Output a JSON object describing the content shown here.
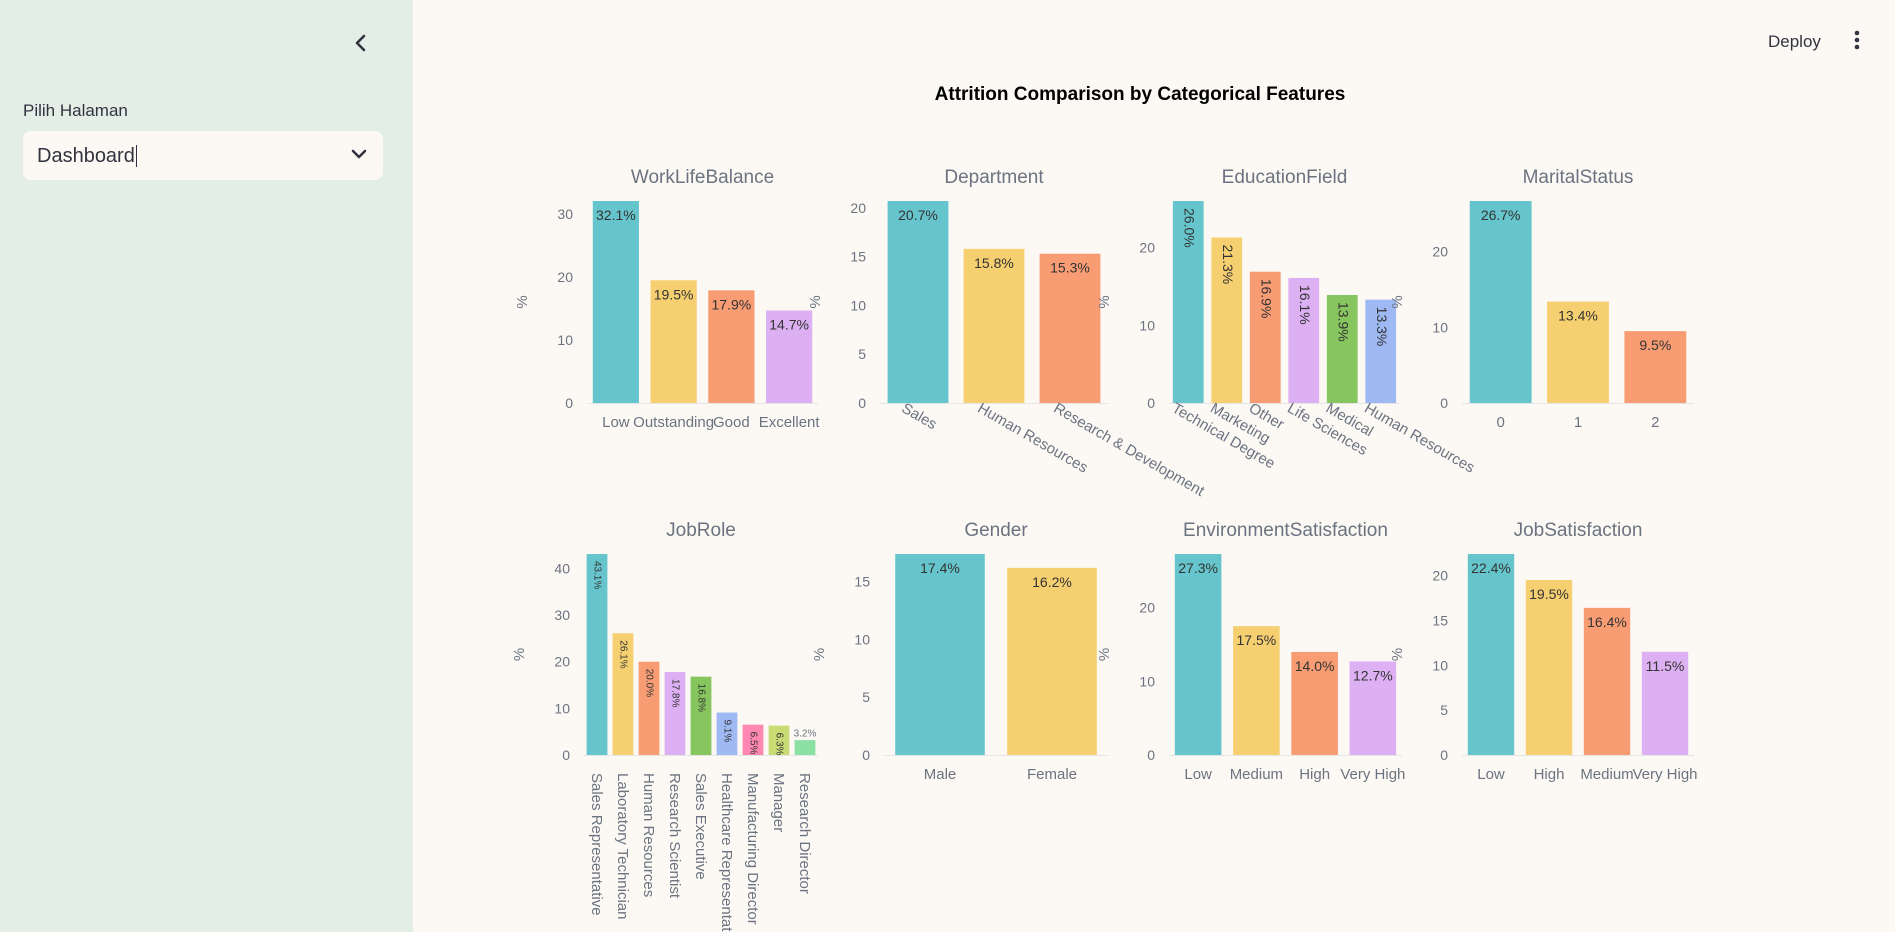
{
  "sidebar": {
    "nav_label": "Pilih Halaman",
    "select_value": "Dashboard",
    "collapse_icon": "chevron-left-icon",
    "dropdown_icon": "chevron-down-icon"
  },
  "header": {
    "deploy_label": "Deploy",
    "menu_icon": "vertical-dots-icon"
  },
  "main": {
    "title": "Attrition Comparison by Categorical Features"
  },
  "colors": [
    "#66c5cc",
    "#f6cf71",
    "#f89c74",
    "#dcb0f2",
    "#87c55f",
    "#9eb9f3",
    "#fe88b1",
    "#c9db74",
    "#8be0a4"
  ],
  "chart_data": [
    {
      "type": "bar",
      "title": "WorkLifeBalance",
      "ylabel": "%",
      "ylim": [
        0,
        32.1
      ],
      "yticks": [
        "0",
        "10",
        "20",
        "30"
      ],
      "categories": [
        "Low",
        "Outstanding",
        "Good",
        "Excellent"
      ],
      "values": [
        32.1,
        19.5,
        17.9,
        14.7
      ],
      "labels": [
        "32.1%",
        "19.5%",
        "17.9%",
        "14.7%"
      ],
      "label_rotation": "horizontal",
      "tick_rotation": "horizontal"
    },
    {
      "type": "bar",
      "title": "Department",
      "ylabel": "%",
      "ylim": [
        0,
        20.7
      ],
      "yticks": [
        "0",
        "5",
        "10",
        "15",
        "20"
      ],
      "categories": [
        "Sales",
        "Human Resources",
        "Research & Development"
      ],
      "values": [
        20.7,
        15.8,
        15.3
      ],
      "labels": [
        "20.7%",
        "15.8%",
        "15.3%"
      ],
      "label_rotation": "horizontal",
      "tick_rotation": "diagonal"
    },
    {
      "type": "bar",
      "title": "EducationField",
      "ylabel": "%",
      "ylim": [
        0,
        26.0
      ],
      "yticks": [
        "0",
        "10",
        "20"
      ],
      "categories": [
        "Technical Degree",
        "Marketing",
        "Other",
        "Life Sciences",
        "Medical",
        "Human Resources"
      ],
      "values": [
        26.0,
        21.3,
        16.9,
        16.1,
        13.9,
        13.3
      ],
      "labels": [
        "26.0%",
        "21.3%",
        "16.9%",
        "16.1%",
        "13.9%",
        "13.3%"
      ],
      "label_rotation": "vertical",
      "tick_rotation": "diagonal"
    },
    {
      "type": "bar",
      "title": "MaritalStatus",
      "ylabel": "%",
      "ylim": [
        0,
        26.7
      ],
      "yticks": [
        "0",
        "10",
        "20"
      ],
      "categories": [
        "0",
        "1",
        "2"
      ],
      "values": [
        26.7,
        13.4,
        9.5
      ],
      "labels": [
        "26.7%",
        "13.4%",
        "9.5%"
      ],
      "label_rotation": "horizontal",
      "tick_rotation": "horizontal"
    },
    {
      "type": "bar",
      "title": "JobRole",
      "ylabel": "%",
      "ylim": [
        0,
        43.1
      ],
      "yticks": [
        "0",
        "10",
        "20",
        "30",
        "40"
      ],
      "categories": [
        "Sales Representative",
        "Laboratory Technician",
        "Human Resources",
        "Research Scientist",
        "Sales Executive",
        "Healthcare Representative",
        "Manufacturing Director",
        "Manager",
        "Research Director"
      ],
      "values": [
        43.1,
        26.1,
        20.0,
        17.8,
        16.8,
        9.1,
        6.5,
        6.3,
        3.2
      ],
      "labels": [
        "43.1%",
        "26.1%",
        "20.0%",
        "17.8%",
        "16.8%",
        "9.1%",
        "6.5%",
        "6.3%",
        "3.2%"
      ],
      "label_rotation": "vertical",
      "tick_rotation": "vertical"
    },
    {
      "type": "bar",
      "title": "Gender",
      "ylabel": "%",
      "ylim": [
        0,
        17.4
      ],
      "yticks": [
        "0",
        "5",
        "10",
        "15"
      ],
      "categories": [
        "Male",
        "Female"
      ],
      "values": [
        17.4,
        16.2
      ],
      "labels": [
        "17.4%",
        "16.2%"
      ],
      "label_rotation": "horizontal",
      "tick_rotation": "horizontal"
    },
    {
      "type": "bar",
      "title": "EnvironmentSatisfaction",
      "ylabel": "%",
      "ylim": [
        0,
        27.3
      ],
      "yticks": [
        "0",
        "10",
        "20"
      ],
      "categories": [
        "Low",
        "Medium",
        "High",
        "Very High"
      ],
      "values": [
        27.3,
        17.5,
        14.0,
        12.7
      ],
      "labels": [
        "27.3%",
        "17.5%",
        "14.0%",
        "12.7%"
      ],
      "label_rotation": "horizontal",
      "tick_rotation": "horizontal"
    },
    {
      "type": "bar",
      "title": "JobSatisfaction",
      "ylabel": "%",
      "ylim": [
        0,
        22.4
      ],
      "yticks": [
        "0",
        "5",
        "10",
        "15",
        "20"
      ],
      "categories": [
        "Low",
        "High",
        "Medium",
        "Very High"
      ],
      "values": [
        22.4,
        19.5,
        16.4,
        11.5
      ],
      "labels": [
        "22.4%",
        "19.5%",
        "16.4%",
        "11.5%"
      ],
      "label_rotation": "horizontal",
      "tick_rotation": "horizontal"
    }
  ]
}
